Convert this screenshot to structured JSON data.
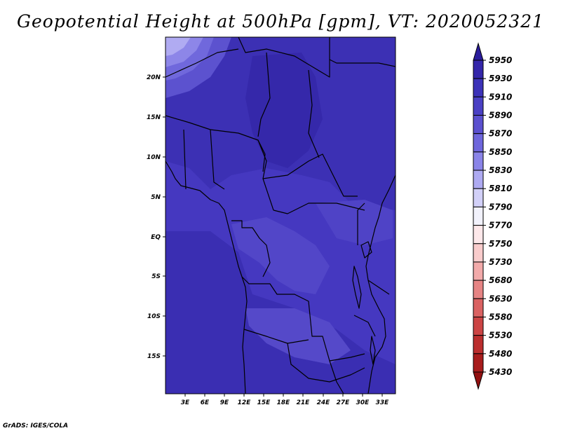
{
  "title": "Geopotential Height at 500hPa [gpm], VT: 2020052321",
  "credit": "GrADS: IGES/COLA",
  "map": {
    "lat_labels": [
      "20N",
      "15N",
      "10N",
      "5N",
      "EQ",
      "5S",
      "10S",
      "15S"
    ],
    "lon_labels": [
      "3E",
      "6E",
      "9E",
      "12E",
      "15E",
      "18E",
      "21E",
      "24E",
      "27E",
      "30E",
      "33E"
    ]
  },
  "colorbar": {
    "labels": [
      "5950",
      "5930",
      "5910",
      "5890",
      "5870",
      "5850",
      "5830",
      "5810",
      "5790",
      "5770",
      "5750",
      "5730",
      "5680",
      "5630",
      "5580",
      "5530",
      "5480",
      "5430"
    ],
    "colors": [
      "#2a1c9c",
      "#3426aa",
      "#3c32b8",
      "#4a40c4",
      "#5b50cf",
      "#6e66dc",
      "#8a84e8",
      "#aeaaf2",
      "#d2d0f8",
      "#f2f2fc",
      "#fde8ea",
      "#f9cccc",
      "#f2aaaa",
      "#e68484",
      "#da6262",
      "#cc4444",
      "#bb2e2e",
      "#a81c1c",
      "#921010"
    ]
  }
}
